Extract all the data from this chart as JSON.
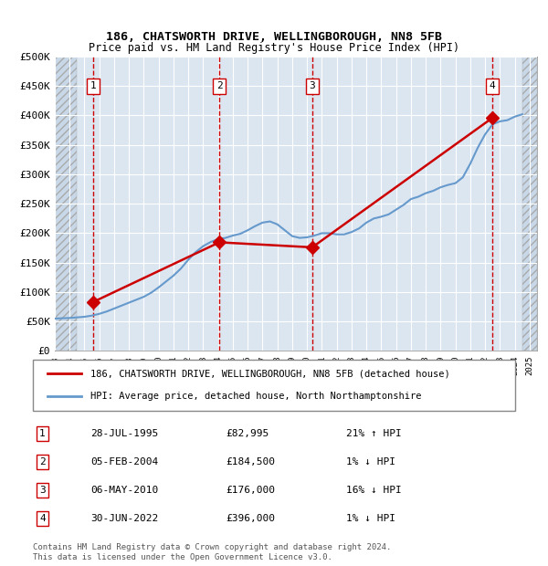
{
  "title1": "186, CHATSWORTH DRIVE, WELLINGBOROUGH, NN8 5FB",
  "title2": "Price paid vs. HM Land Registry's House Price Index (HPI)",
  "ylabel": "",
  "ylim": [
    0,
    500000
  ],
  "yticks": [
    0,
    50000,
    100000,
    150000,
    200000,
    250000,
    300000,
    350000,
    400000,
    450000,
    500000
  ],
  "ytick_labels": [
    "£0",
    "£50K",
    "£100K",
    "£150K",
    "£200K",
    "£250K",
    "£300K",
    "£350K",
    "£400K",
    "£450K",
    "£500K"
  ],
  "xlim_start": 1993.0,
  "xlim_end": 2025.5,
  "sale_dates": [
    1995.573,
    2004.09,
    2010.347,
    2022.496
  ],
  "sale_prices": [
    82995,
    184500,
    176000,
    396000
  ],
  "sale_labels": [
    "1",
    "2",
    "3",
    "4"
  ],
  "legend_label_property": "186, CHATSWORTH DRIVE, WELLINGBOROUGH, NN8 5FB (detached house)",
  "legend_label_hpi": "HPI: Average price, detached house, North Northamptonshire",
  "table_entries": [
    {
      "num": "1",
      "date": "28-JUL-1995",
      "price": "£82,995",
      "hpi": "21% ↑ HPI"
    },
    {
      "num": "2",
      "date": "05-FEB-2004",
      "price": "£184,500",
      "hpi": "1% ↓ HPI"
    },
    {
      "num": "3",
      "date": "06-MAY-2010",
      "price": "£176,000",
      "hpi": "16% ↓ HPI"
    },
    {
      "num": "4",
      "date": "30-JUN-2022",
      "price": "£396,000",
      "hpi": "1% ↓ HPI"
    }
  ],
  "footnote": "Contains HM Land Registry data © Crown copyright and database right 2024.\nThis data is licensed under the Open Government Licence v3.0.",
  "property_line_color": "#cc0000",
  "hpi_line_color": "#6699cc",
  "sale_marker_color": "#cc0000",
  "vline_color": "#cc0000",
  "hatch_color": "#cccccc",
  "bg_color": "#dce6f1",
  "grid_color": "#ffffff",
  "hpi_data_x": [
    1993.0,
    1993.5,
    1994.0,
    1994.5,
    1995.0,
    1995.5,
    1996.0,
    1996.5,
    1997.0,
    1997.5,
    1998.0,
    1998.5,
    1999.0,
    1999.5,
    2000.0,
    2000.5,
    2001.0,
    2001.5,
    2002.0,
    2002.5,
    2003.0,
    2003.5,
    2004.0,
    2004.5,
    2005.0,
    2005.5,
    2006.0,
    2006.5,
    2007.0,
    2007.5,
    2008.0,
    2008.5,
    2009.0,
    2009.5,
    2010.0,
    2010.5,
    2011.0,
    2011.5,
    2012.0,
    2012.5,
    2013.0,
    2013.5,
    2014.0,
    2014.5,
    2015.0,
    2015.5,
    2016.0,
    2016.5,
    2017.0,
    2017.5,
    2018.0,
    2018.5,
    2019.0,
    2019.5,
    2020.0,
    2020.5,
    2021.0,
    2021.5,
    2022.0,
    2022.5,
    2023.0,
    2023.5,
    2024.0,
    2024.5
  ],
  "hpi_data_y": [
    55000,
    55500,
    56000,
    57000,
    58000,
    60000,
    63000,
    67000,
    72000,
    77000,
    82000,
    87000,
    92000,
    99000,
    108000,
    118000,
    128000,
    140000,
    155000,
    168000,
    178000,
    185000,
    190000,
    192000,
    196000,
    199000,
    205000,
    212000,
    218000,
    220000,
    215000,
    205000,
    195000,
    192000,
    193000,
    196000,
    200000,
    200000,
    198000,
    198000,
    202000,
    208000,
    218000,
    225000,
    228000,
    232000,
    240000,
    248000,
    258000,
    262000,
    268000,
    272000,
    278000,
    282000,
    285000,
    295000,
    318000,
    345000,
    368000,
    385000,
    390000,
    392000,
    398000,
    402000
  ],
  "property_line_x": [
    1995.573,
    2004.09,
    2010.347,
    2022.496
  ],
  "property_line_y": [
    82995,
    184500,
    176000,
    396000
  ]
}
